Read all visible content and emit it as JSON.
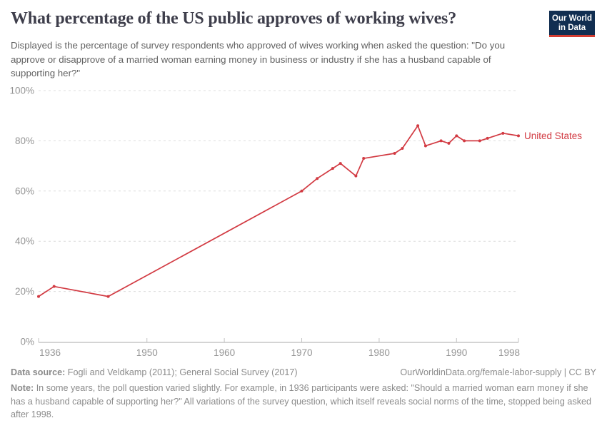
{
  "header": {
    "title": "What percentage of the US public approves of working wives?",
    "subtitle": "Displayed is the percentage of survey respondents who approved of wives working when asked the question: \"Do you approve or disapprove of a married woman earning money in business or industry if she has a husband capable of supporting her?\""
  },
  "logo": {
    "line1": "Our World",
    "line2": "in Data",
    "bg_color": "#112e51",
    "stripe_color": "#d33c31"
  },
  "chart_data": {
    "type": "line",
    "title": "What percentage of the US public approves of working wives?",
    "xlabel": "",
    "ylabel": "",
    "xlim": [
      1936,
      1998
    ],
    "ylim": [
      0,
      100
    ],
    "grid": "horizontal-dashed",
    "legend_position": "end-of-line-label",
    "x_tick_values": [
      1936,
      1950,
      1960,
      1970,
      1980,
      1990,
      1998
    ],
    "x_tick_labels": [
      "1936",
      "1950",
      "1960",
      "1970",
      "1980",
      "1990",
      "1998"
    ],
    "y_tick_values": [
      0,
      20,
      40,
      60,
      80,
      100
    ],
    "y_tick_labels": [
      "0%",
      "20%",
      "40%",
      "60%",
      "80%",
      "100%"
    ],
    "series": [
      {
        "name": "United States",
        "color": "#d23a42",
        "points": [
          [
            1936,
            18
          ],
          [
            1938,
            22
          ],
          [
            1945,
            18
          ],
          [
            1970,
            60
          ],
          [
            1972,
            65
          ],
          [
            1974,
            69
          ],
          [
            1975,
            71
          ],
          [
            1977,
            66
          ],
          [
            1978,
            73
          ],
          [
            1982,
            75
          ],
          [
            1983,
            77
          ],
          [
            1985,
            86
          ],
          [
            1986,
            78
          ],
          [
            1988,
            80
          ],
          [
            1989,
            79
          ],
          [
            1990,
            82
          ],
          [
            1991,
            80
          ],
          [
            1993,
            80
          ],
          [
            1994,
            81
          ],
          [
            1996,
            83
          ],
          [
            1998,
            82
          ]
        ]
      }
    ]
  },
  "footer": {
    "source_label": "Data source:",
    "source_text": "Fogli and Veldkamp (2011); General Social Survey (2017)",
    "attribution": "OurWorldinData.org/female-labor-supply | CC BY",
    "note_label": "Note:",
    "note_text": "In some years, the poll question varied slightly. For example, in 1936 participants were asked: \"Should a married woman earn money if she has a husband capable of supporting her?\" All variations of the survey question, which itself reveals social norms of the time, stopped being asked after 1998."
  }
}
